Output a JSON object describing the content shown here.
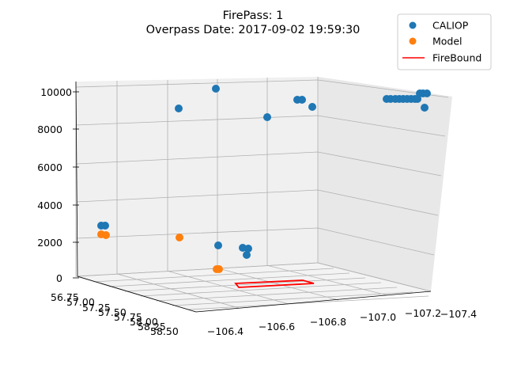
{
  "chart_data": {
    "type": "scatter",
    "projection": "3d",
    "title": [
      "FirePass: 1",
      "Overpass Date: 2017-09-02 19:59:30"
    ],
    "xlabel": "",
    "ylabel": "",
    "zlabel": "",
    "x_ticks": [
      "−106.4",
      "−106.6",
      "−106.8",
      "−107.0",
      "−107.2",
      "−107.4"
    ],
    "y_ticks": [
      "56.75",
      "57.00",
      "57.25",
      "57.50",
      "57.75",
      "58.00",
      "58.25",
      "58.50"
    ],
    "z_ticks": [
      "0",
      "2000",
      "4000",
      "6000",
      "8000",
      "10000"
    ],
    "legend": {
      "position": "top-right",
      "entries": [
        "CALIOP",
        "Model",
        "FireBound"
      ]
    },
    "colors": {
      "caliop": "#1f77b4",
      "model": "#ff7f0e",
      "firebound": "#ff0000"
    }
  }
}
